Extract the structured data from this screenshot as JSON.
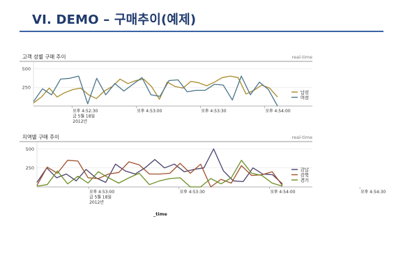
{
  "slide": {
    "title": "VI. DEMO – 구매추이(예제)",
    "footer_label": "_time",
    "accent_color": "#3b63a5",
    "title_color": "#1f3a6d"
  },
  "chart_data": [
    {
      "type": "line",
      "title": "고객 성별 구매 추이",
      "meta": "real-time",
      "ylim": [
        0,
        550
      ],
      "yticks": [
        250,
        500
      ],
      "xticks": [
        {
          "idx": 6,
          "lines": [
            "오후 4:52:30",
            "금 5월 18일",
            "2012년"
          ]
        },
        {
          "idx": 16,
          "lines": [
            "오후 4:53:00"
          ]
        },
        {
          "idx": 26,
          "lines": [
            "오후 4:53:30"
          ]
        },
        {
          "idx": 36,
          "lines": [
            "오후 4:54:00"
          ]
        }
      ],
      "legend_position": "right",
      "series": [
        {
          "name": "남성",
          "color": "#a98a2b",
          "values": [
            40,
            120,
            240,
            120,
            180,
            220,
            240,
            150,
            100,
            200,
            260,
            360,
            300,
            340,
            360,
            260,
            90,
            320,
            260,
            240,
            330,
            310,
            270,
            320,
            380,
            400,
            380,
            160,
            210,
            280,
            240,
            120
          ]
        },
        {
          "name": "여성",
          "color": "#4a7588",
          "values": [
            60,
            230,
            150,
            360,
            370,
            400,
            30,
            370,
            150,
            300,
            200,
            290,
            380,
            150,
            130,
            340,
            350,
            190,
            210,
            210,
            290,
            280,
            80,
            400,
            150,
            320,
            220,
            0
          ]
        }
      ]
    },
    {
      "type": "line",
      "title": "지역별 구매 추이",
      "meta": "real-time",
      "ylim": [
        0,
        550
      ],
      "yticks": [
        250,
        500
      ],
      "xticks": [
        {
          "idx": 8,
          "lines": [
            "오후 4:53:00",
            "금 5월 18일",
            "2012년"
          ]
        },
        {
          "idx": 22,
          "lines": [
            "오후 4:53:30"
          ]
        },
        {
          "idx": 36,
          "lines": [
            "오후 4:54:00"
          ]
        },
        {
          "idx": 50,
          "lines": [
            "오후 4:54:30"
          ]
        }
      ],
      "legend_position": "right",
      "series": [
        {
          "name": "강남",
          "color": "#4a3f6b",
          "values": [
            60,
            250,
            120,
            170,
            80,
            230,
            120,
            60,
            300,
            210,
            170,
            250,
            360,
            250,
            300,
            200,
            230,
            250,
            500,
            210,
            80,
            70,
            250,
            170,
            160,
            40
          ]
        },
        {
          "name": "강북",
          "color": "#a0522d",
          "values": [
            20,
            260,
            180,
            350,
            340,
            120,
            110,
            170,
            190,
            330,
            290,
            170,
            170,
            180,
            310,
            180,
            300,
            0,
            100,
            50,
            280,
            150,
            160,
            200,
            20
          ]
        },
        {
          "name": "경기",
          "color": "#6b8e23",
          "values": [
            10,
            30,
            210,
            40,
            140,
            50,
            200,
            120,
            50,
            120,
            180,
            30,
            80,
            110,
            120,
            0,
            0,
            110,
            40,
            120,
            350,
            180,
            150,
            50,
            10
          ]
        }
      ]
    }
  ]
}
